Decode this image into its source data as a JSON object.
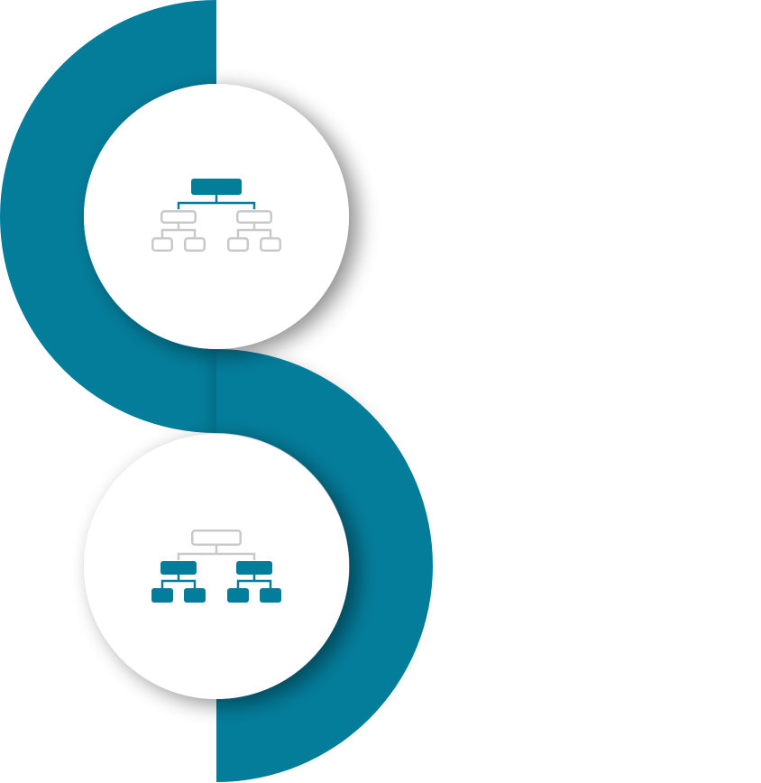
{
  "colors": {
    "primary": "#047D9B",
    "muted": "#C9C9C9",
    "background": "#FFFFFF",
    "circle_fill": "#FFFFFF",
    "shadow": "#000000"
  },
  "steps": [
    {
      "icon": "org-chart-top-level-highlighted-icon",
      "highlight": "top-node"
    },
    {
      "icon": "org-chart-lower-levels-highlighted-icon",
      "highlight": "lower-nodes"
    }
  ]
}
